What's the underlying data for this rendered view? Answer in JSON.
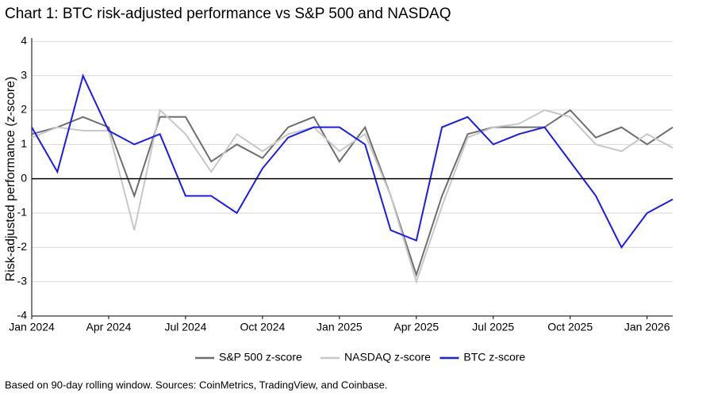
{
  "chart_data": {
    "type": "line",
    "title": "Chart 1: BTC risk-adjusted performance vs S&P 500 and NASDAQ",
    "y_label": "Risk-adjusted performance (z-score)",
    "footnote": "Based on 90-day rolling window. Sources: CoinMetrics, TradingView, and Coinbase.",
    "x": [
      "2024-01",
      "2024-02",
      "2024-03",
      "2024-04",
      "2024-05",
      "2024-06",
      "2024-07",
      "2024-08",
      "2024-09",
      "2024-10",
      "2024-11",
      "2024-12",
      "2025-01",
      "2025-02",
      "2025-03",
      "2025-04",
      "2025-05",
      "2025-06",
      "2025-07",
      "2025-08",
      "2025-09",
      "2025-10",
      "2025-11",
      "2025-12",
      "2026-01",
      "2026-02"
    ],
    "xlim": [
      "2024-01",
      "2026-02"
    ],
    "xticks": [
      {
        "value": "2024-01",
        "label": "Jan 2024"
      },
      {
        "value": "2024-04",
        "label": "Apr 2024"
      },
      {
        "value": "2024-07",
        "label": "Jul 2024"
      },
      {
        "value": "2024-10",
        "label": "Oct 2024"
      },
      {
        "value": "2025-01",
        "label": "Jan 2025"
      },
      {
        "value": "2025-04",
        "label": "Apr 2025"
      },
      {
        "value": "2025-07",
        "label": "Jul 2025"
      },
      {
        "value": "2025-10",
        "label": "Oct 2025"
      },
      {
        "value": "2026-01",
        "label": "Jan 2026"
      }
    ],
    "ylim": [
      -4,
      4.1
    ],
    "yticks": [
      -4,
      -3,
      -2,
      -1,
      0,
      1,
      2,
      3,
      4
    ],
    "grid": true,
    "zero_line": true,
    "legend": "bottom",
    "series": [
      {
        "name": "S&P 500 z-score",
        "color": "#6e6e6e",
        "values": [
          1.3,
          1.5,
          1.8,
          1.5,
          -0.5,
          1.8,
          1.8,
          0.5,
          1.0,
          0.6,
          1.5,
          1.8,
          0.5,
          1.5,
          -0.5,
          -2.8,
          -0.5,
          1.3,
          1.5,
          1.5,
          1.5,
          2.0,
          1.2,
          1.5,
          1.0,
          1.5
        ]
      },
      {
        "name": "NASDAQ z-score",
        "color": "#c8c8c8",
        "values": [
          1.2,
          1.5,
          1.4,
          1.4,
          -1.5,
          2.0,
          1.3,
          0.2,
          1.3,
          0.8,
          1.3,
          1.5,
          0.8,
          1.3,
          -0.5,
          -3.0,
          -0.8,
          1.2,
          1.5,
          1.6,
          2.0,
          1.8,
          1.0,
          0.8,
          1.3,
          0.9
        ]
      },
      {
        "name": "BTC z-score",
        "color": "#1a1aff",
        "values": [
          1.5,
          0.2,
          3.0,
          1.4,
          1.0,
          1.3,
          -0.5,
          -0.5,
          -1.0,
          0.3,
          1.2,
          1.5,
          1.5,
          1.0,
          -1.5,
          -1.8,
          1.5,
          1.8,
          1.0,
          1.3,
          1.5,
          0.5,
          -0.5,
          -2.0,
          -1.0,
          -0.6
        ]
      }
    ]
  }
}
